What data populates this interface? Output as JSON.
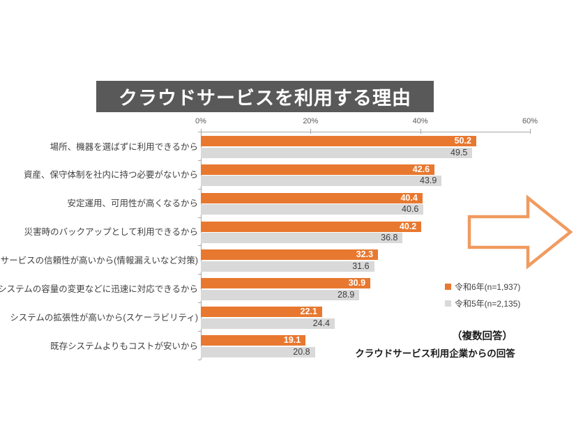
{
  "page": {
    "background": "#ffffff"
  },
  "title_banner": {
    "text": "クラウドサービスを利用する理由",
    "bg": "#595959",
    "text_color": "#ffffff"
  },
  "chart_data": {
    "type": "bar",
    "orientation": "horizontal",
    "title": "クラウドサービスを利用する理由",
    "categories": [
      "場所、機器を選ばずに利用できるから",
      "資産、保守体制を社内に持つ必要がないから",
      "安定運用、可用性が高くなるから",
      "災害時のバックアップとして利用できるから",
      "サービスの信頼性が高いから(情報漏えいなど対策)",
      "システムの容量の変更などに迅速に対応できるから",
      "システムの拡張性が高いから(スケーラビリティ)",
      "既存システムよりもコストが安いから"
    ],
    "series": [
      {
        "name": "令和6年(n=1,937)",
        "color": "#e8782f",
        "label_color": "#ffffff",
        "values": [
          50.2,
          42.6,
          40.4,
          40.2,
          32.3,
          30.9,
          22.1,
          19.1
        ]
      },
      {
        "name": "令和5年(n=2,135)",
        "color": "#d9d9d9",
        "label_color": "#3b3b3b",
        "values": [
          49.5,
          43.9,
          40.6,
          36.8,
          31.6,
          28.9,
          24.4,
          20.8
        ]
      }
    ],
    "x_axis": {
      "position": "top",
      "min": 0,
      "max": 60,
      "tick_values": [
        0,
        20,
        40,
        60
      ],
      "tick_labels": [
        "0%",
        "20%",
        "40%",
        "60%"
      ]
    },
    "value_labels": "inside-end",
    "legend_position": "right",
    "grid": false
  },
  "annotations": {
    "multiple_answers": "（複数回答）",
    "respondents": "クラウドサービス利用企業からの回答"
  },
  "arrow": {
    "direction": "right",
    "fill": "#ffffff",
    "stroke": "#f09b60"
  }
}
